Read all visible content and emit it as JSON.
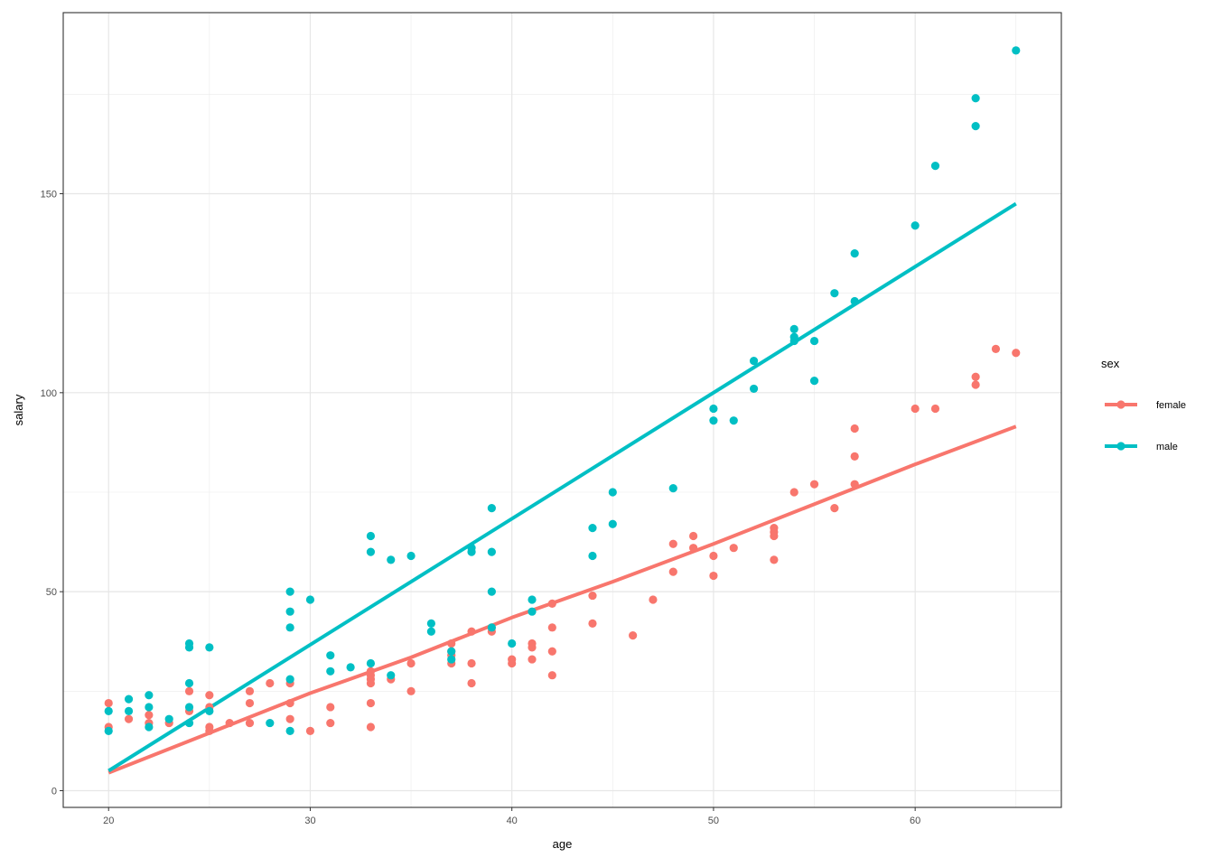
{
  "chart_data": {
    "type": "scatter",
    "title": "",
    "xlabel": "age",
    "ylabel": "salary",
    "xlim": [
      17.75,
      67.25
    ],
    "ylim": [
      -4.2,
      195.5
    ],
    "x_ticks": [
      20,
      30,
      40,
      50,
      60
    ],
    "y_ticks": [
      0,
      50,
      100,
      150
    ],
    "x_minor_gridlines": [
      25,
      35,
      45,
      55,
      65
    ],
    "y_minor_gridlines": [
      25,
      75,
      125,
      175
    ],
    "grid": true,
    "legend": {
      "title": "sex",
      "placement": "right"
    },
    "series": [
      {
        "name": "female",
        "color": "#F8766D",
        "points": [
          [
            20,
            22
          ],
          [
            20,
            16
          ],
          [
            21,
            18
          ],
          [
            22,
            19
          ],
          [
            22,
            17
          ],
          [
            23,
            17
          ],
          [
            24,
            20
          ],
          [
            24,
            25
          ],
          [
            25,
            24
          ],
          [
            25,
            21
          ],
          [
            25,
            16
          ],
          [
            25,
            15
          ],
          [
            26,
            17
          ],
          [
            27,
            25
          ],
          [
            27,
            22
          ],
          [
            27,
            17
          ],
          [
            28,
            27
          ],
          [
            29,
            27
          ],
          [
            29,
            22
          ],
          [
            29,
            18
          ],
          [
            30,
            15
          ],
          [
            31,
            21
          ],
          [
            31,
            17
          ],
          [
            33,
            30
          ],
          [
            33,
            29
          ],
          [
            33,
            28
          ],
          [
            33,
            27
          ],
          [
            33,
            22
          ],
          [
            33,
            16
          ],
          [
            34,
            28
          ],
          [
            35,
            32
          ],
          [
            35,
            25
          ],
          [
            37,
            37
          ],
          [
            37,
            35
          ],
          [
            37,
            34
          ],
          [
            37,
            32
          ],
          [
            38,
            40
          ],
          [
            38,
            32
          ],
          [
            38,
            27
          ],
          [
            39,
            41
          ],
          [
            39,
            40
          ],
          [
            40,
            33
          ],
          [
            40,
            32
          ],
          [
            41,
            37
          ],
          [
            41,
            36
          ],
          [
            41,
            33
          ],
          [
            42,
            47
          ],
          [
            42,
            41
          ],
          [
            42,
            35
          ],
          [
            42,
            29
          ],
          [
            44,
            49
          ],
          [
            44,
            42
          ],
          [
            46,
            39
          ],
          [
            47,
            48
          ],
          [
            48,
            62
          ],
          [
            48,
            55
          ],
          [
            49,
            64
          ],
          [
            49,
            61
          ],
          [
            50,
            59
          ],
          [
            50,
            54
          ],
          [
            51,
            61
          ],
          [
            53,
            66
          ],
          [
            53,
            65
          ],
          [
            53,
            64
          ],
          [
            53,
            58
          ],
          [
            54,
            75
          ],
          [
            55,
            77
          ],
          [
            56,
            71
          ],
          [
            57,
            91
          ],
          [
            57,
            84
          ],
          [
            57,
            77
          ],
          [
            60,
            96
          ],
          [
            61,
            96
          ],
          [
            63,
            104
          ],
          [
            63,
            102
          ],
          [
            64,
            111
          ],
          [
            65,
            110
          ]
        ],
        "trend": [
          [
            20,
            4.5
          ],
          [
            25,
            14.5
          ],
          [
            30,
            24.5
          ],
          [
            35,
            33.5
          ],
          [
            40,
            43.5
          ],
          [
            45,
            52.5
          ],
          [
            50,
            62
          ],
          [
            55,
            72
          ],
          [
            60,
            82
          ],
          [
            65,
            91.5
          ]
        ]
      },
      {
        "name": "male",
        "color": "#00BFC4",
        "points": [
          [
            20,
            20
          ],
          [
            20,
            15
          ],
          [
            21,
            23
          ],
          [
            21,
            20
          ],
          [
            22,
            24
          ],
          [
            22,
            21
          ],
          [
            22,
            16
          ],
          [
            23,
            18
          ],
          [
            24,
            37
          ],
          [
            24,
            36
          ],
          [
            24,
            27
          ],
          [
            24,
            21
          ],
          [
            24,
            17
          ],
          [
            25,
            36
          ],
          [
            25,
            20
          ],
          [
            28,
            17
          ],
          [
            29,
            50
          ],
          [
            29,
            45
          ],
          [
            29,
            41
          ],
          [
            29,
            28
          ],
          [
            29,
            15
          ],
          [
            30,
            48
          ],
          [
            31,
            34
          ],
          [
            31,
            30
          ],
          [
            32,
            31
          ],
          [
            33,
            64
          ],
          [
            33,
            60
          ],
          [
            33,
            32
          ],
          [
            34,
            58
          ],
          [
            34,
            29
          ],
          [
            35,
            59
          ],
          [
            36,
            42
          ],
          [
            36,
            40
          ],
          [
            37,
            35
          ],
          [
            37,
            33
          ],
          [
            38,
            61
          ],
          [
            38,
            60
          ],
          [
            39,
            71
          ],
          [
            39,
            60
          ],
          [
            39,
            50
          ],
          [
            39,
            41
          ],
          [
            40,
            37
          ],
          [
            41,
            48
          ],
          [
            41,
            45
          ],
          [
            44,
            66
          ],
          [
            44,
            59
          ],
          [
            45,
            75
          ],
          [
            45,
            67
          ],
          [
            48,
            76
          ],
          [
            50,
            96
          ],
          [
            50,
            93
          ],
          [
            51,
            93
          ],
          [
            52,
            108
          ],
          [
            52,
            101
          ],
          [
            54,
            116
          ],
          [
            54,
            114
          ],
          [
            54,
            113
          ],
          [
            55,
            113
          ],
          [
            55,
            103
          ],
          [
            56,
            125
          ],
          [
            57,
            135
          ],
          [
            57,
            123
          ],
          [
            60,
            142
          ],
          [
            61,
            157
          ],
          [
            63,
            174
          ],
          [
            63,
            167
          ],
          [
            65,
            186
          ]
        ],
        "trend": [
          [
            20,
            5
          ],
          [
            65,
            147.5
          ]
        ]
      }
    ]
  }
}
